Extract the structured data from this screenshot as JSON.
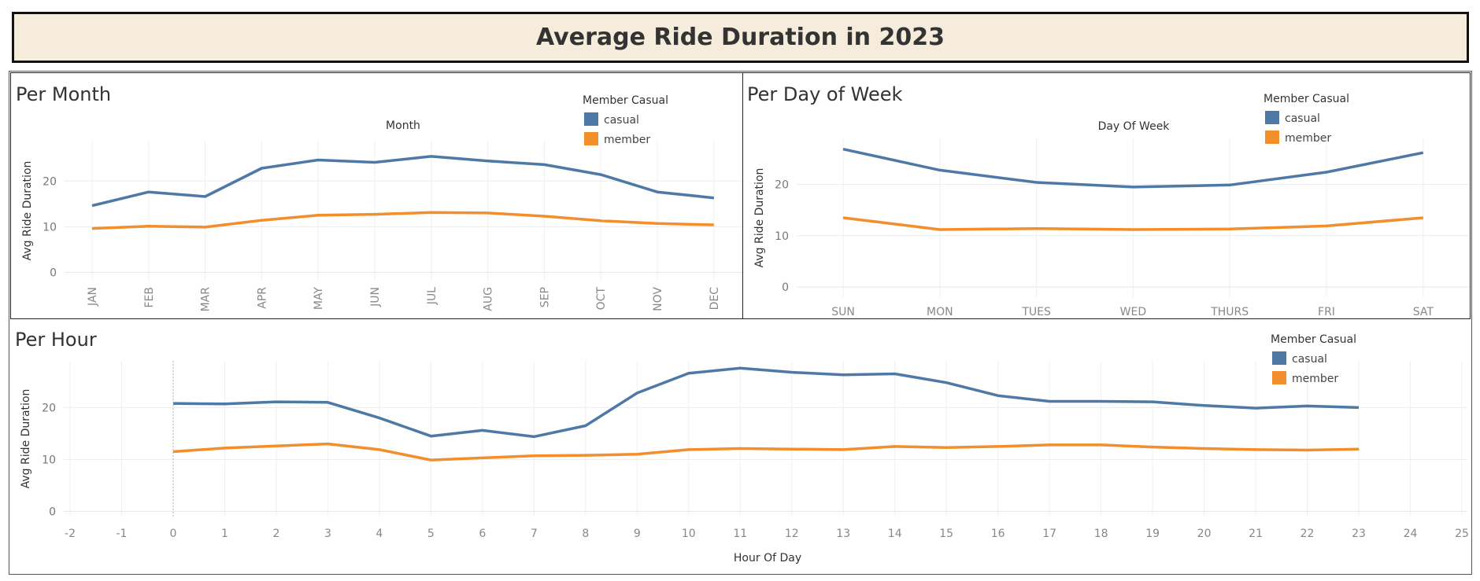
{
  "header": {
    "title": "Average Ride Duration in 2023"
  },
  "legend": {
    "title": "Member Casual",
    "items": [
      {
        "label": "casual",
        "color": "#4e79a7"
      },
      {
        "label": "member",
        "color": "#f28e2b"
      }
    ]
  },
  "panels": {
    "month": {
      "title": "Per Month",
      "axis_title": "Month",
      "ylabel": "Avg Ride Duration"
    },
    "dow": {
      "title": "Per Day of Week",
      "axis_title": "Day Of Week",
      "ylabel": "Avg Ride Duration"
    },
    "hour": {
      "title": "Per Hour",
      "axis_title": "Hour Of Day",
      "ylabel": "Avg Ride Duration"
    }
  },
  "chart_data": [
    {
      "type": "line",
      "categories": [
        "JAN",
        "FEB",
        "MAR",
        "APR",
        "MAY",
        "JUN",
        "JUL",
        "AUG",
        "SEP",
        "OCT",
        "NOV",
        "DEC"
      ],
      "series": [
        {
          "name": "casual",
          "values": [
            14.6,
            17.6,
            16.6,
            22.8,
            24.6,
            24.1,
            25.4,
            24.4,
            23.6,
            21.4,
            17.6,
            16.3
          ]
        },
        {
          "name": "member",
          "values": [
            9.6,
            10.1,
            9.9,
            11.4,
            12.5,
            12.7,
            13.1,
            13.0,
            12.3,
            11.3,
            10.7,
            10.4
          ]
        }
      ],
      "yticks": [
        0,
        10,
        20
      ],
      "ylim": [
        -2,
        29
      ]
    },
    {
      "type": "line",
      "categories": [
        "SUN",
        "MON",
        "TUES",
        "WED",
        "THURS",
        "FRI",
        "SAT"
      ],
      "series": [
        {
          "name": "casual",
          "values": [
            26.9,
            22.8,
            20.4,
            19.5,
            19.9,
            22.4,
            26.2
          ]
        },
        {
          "name": "member",
          "values": [
            13.5,
            11.2,
            11.4,
            11.2,
            11.3,
            11.9,
            13.5
          ]
        }
      ],
      "yticks": [
        0,
        10,
        20
      ],
      "ylim": [
        -2,
        29
      ]
    },
    {
      "type": "line",
      "x": [
        0,
        1,
        2,
        3,
        4,
        5,
        6,
        7,
        8,
        9,
        10,
        11,
        12,
        13,
        14,
        15,
        16,
        17,
        18,
        19,
        20,
        21,
        22,
        23
      ],
      "xticks": [
        -2,
        -1,
        0,
        1,
        2,
        3,
        4,
        5,
        6,
        7,
        8,
        9,
        10,
        11,
        12,
        13,
        14,
        15,
        16,
        17,
        18,
        19,
        20,
        21,
        22,
        23,
        24,
        25
      ],
      "series": [
        {
          "name": "casual",
          "values": [
            20.8,
            20.7,
            21.1,
            21.0,
            18.0,
            14.5,
            15.6,
            14.4,
            16.5,
            22.8,
            26.6,
            27.6,
            26.8,
            26.3,
            26.5,
            24.8,
            22.3,
            21.2,
            21.2,
            21.1,
            20.4,
            19.9,
            20.3,
            20.0
          ]
        },
        {
          "name": "member",
          "values": [
            11.5,
            12.2,
            12.6,
            13.0,
            11.9,
            9.9,
            10.3,
            10.7,
            10.8,
            11.0,
            11.9,
            12.1,
            12.0,
            11.9,
            12.5,
            12.3,
            12.5,
            12.8,
            12.8,
            12.4,
            12.1,
            11.9,
            11.8,
            12.0
          ]
        }
      ],
      "yticks": [
        0,
        10,
        20
      ],
      "ylim": [
        -1,
        29
      ],
      "xlim": [
        -2,
        25
      ]
    }
  ]
}
